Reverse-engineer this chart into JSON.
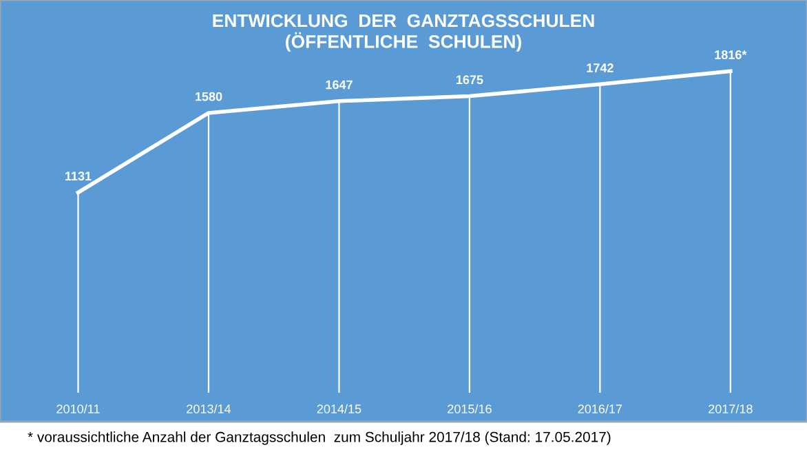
{
  "chart_data": {
    "type": "line",
    "title": "ENTWICKLUNG  DER  GANZTAGSSCHULEN\n(ÖFFENTLICHE  SCHULEN)",
    "categories": [
      "2010/11",
      "2013/14",
      "2014/15",
      "2015/16",
      "2016/17",
      "2017/18"
    ],
    "values": [
      1131,
      1580,
      1647,
      1675,
      1742,
      1816
    ],
    "value_labels": [
      "1131",
      "1580",
      "1647",
      "1675",
      "1742",
      "1816*"
    ],
    "color": "#ffffff",
    "grid": "x",
    "marker": "none",
    "line_style": "solid",
    "annotations": [
      "* voraussichtliche Anzahl der Ganztagsschulen  zum Schuljahr 2017/18 (Stand: 17.05.2017)"
    ]
  }
}
